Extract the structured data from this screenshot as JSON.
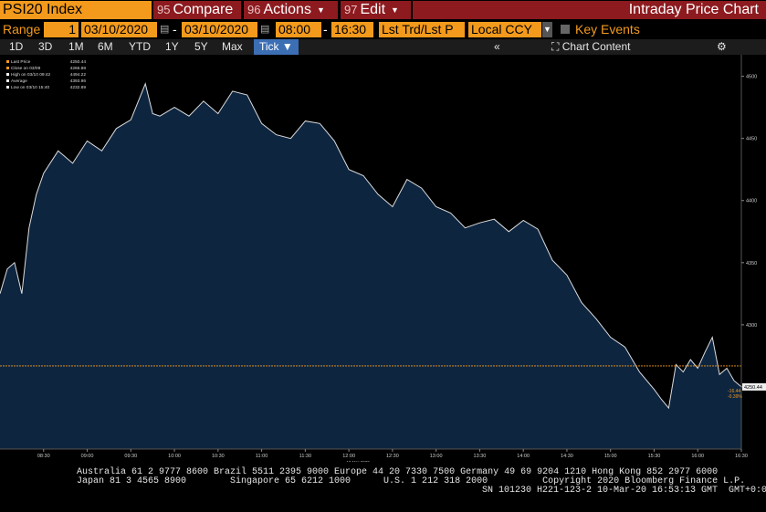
{
  "toolbar": {
    "ticker": "PSI20 Index",
    "compare": {
      "num": "95",
      "label": "Compare"
    },
    "actions": {
      "num": "96",
      "label": "Actions"
    },
    "edit": {
      "num": "97",
      "label": "Edit"
    },
    "title": "Intraday Price Chart"
  },
  "range_bar": {
    "range_label": "Range",
    "range_value": "1",
    "start_date": "03/10/2020",
    "end_date": "03/10/2020",
    "start_time": "08:00",
    "end_time": "16:30",
    "price_field": "Lst Trd/Lst P",
    "currency": "Local CCY",
    "key_events": "Key Events"
  },
  "period_tabs": [
    "1D",
    "3D",
    "1M",
    "6M",
    "YTD",
    "1Y",
    "5Y",
    "Max"
  ],
  "tick_label": "Tick",
  "chart_content": "Chart Content",
  "legend": [
    {
      "label": "Last Price",
      "value": "4250.44",
      "color": "#f39a1c"
    },
    {
      "label": "Close on 03/09",
      "value": "4266.88",
      "color": "#f39a1c"
    },
    {
      "label": "High on 03/10 09:42",
      "value": "4494.22",
      "color": "#ffffff"
    },
    {
      "label": "Average",
      "value": "4393.96",
      "color": "#ffffff"
    },
    {
      "label": "Low on 03/10 15:40",
      "value": "4232.89",
      "color": "#ffffff"
    }
  ],
  "last_price_tag": "4250.44",
  "change_tag": "-16.44",
  "change_pct_tag": "-0.39%",
  "date_label": "10 Mar 2020",
  "colors": {
    "accent": "#f39a1c",
    "menu": "#8c1a1f",
    "area": "#0e2540",
    "line": "#dcdcdc"
  },
  "chart_data": {
    "type": "area",
    "x": [
      "08:00",
      "08:05",
      "08:10",
      "08:15",
      "08:20",
      "08:25",
      "08:30",
      "08:40",
      "08:50",
      "09:00",
      "09:10",
      "09:20",
      "09:30",
      "09:40",
      "09:45",
      "09:50",
      "10:00",
      "10:10",
      "10:20",
      "10:30",
      "10:40",
      "10:50",
      "11:00",
      "11:10",
      "11:20",
      "11:30",
      "11:40",
      "11:50",
      "12:00",
      "12:10",
      "12:20",
      "12:30",
      "12:40",
      "12:50",
      "13:00",
      "13:10",
      "13:20",
      "13:30",
      "13:40",
      "13:50",
      "14:00",
      "14:10",
      "14:20",
      "14:30",
      "14:40",
      "14:50",
      "15:00",
      "15:10",
      "15:20",
      "15:30",
      "15:35",
      "15:40",
      "15:45",
      "15:50",
      "15:55",
      "16:00",
      "16:05",
      "16:10",
      "16:15",
      "16:20",
      "16:25",
      "16:30"
    ],
    "values": [
      4325,
      4345,
      4350,
      4325,
      4378,
      4405,
      4422,
      4440,
      4430,
      4448,
      4440,
      4458,
      4465,
      4494,
      4470,
      4468,
      4475,
      4468,
      4480,
      4470,
      4488,
      4485,
      4462,
      4453,
      4450,
      4464,
      4462,
      4448,
      4425,
      4420,
      4405,
      4395,
      4417,
      4410,
      4395,
      4390,
      4378,
      4382,
      4385,
      4375,
      4384,
      4377,
      4352,
      4340,
      4318,
      4305,
      4290,
      4282,
      4262,
      4248,
      4240,
      4233,
      4268,
      4262,
      4272,
      4265,
      4278,
      4290,
      4260,
      4265,
      4255,
      4250
    ],
    "ylim": [
      4200,
      4510
    ],
    "y_ticks": [
      4250,
      4300,
      4350,
      4400,
      4450,
      4500
    ],
    "x_ticks": [
      "08:30",
      "09:00",
      "09:30",
      "10:00",
      "10:30",
      "11:00",
      "11:30",
      "12:00",
      "12:30",
      "13:00",
      "13:30",
      "14:00",
      "14:30",
      "15:00",
      "15:30",
      "16:00",
      "16:30"
    ],
    "reference_line": 4266.88
  },
  "footer": {
    "line1": "Australia 61 2 9777 8600 Brazil 5511 2395 9000 Europe 44 20 7330 7500 Germany 49 69 9204 1210 Hong Kong 852 2977 6000",
    "line2": "Japan 81 3 4565 8900        Singapore 65 6212 1000      U.S. 1 212 318 2000          Copyright 2020 Bloomberg Finance L.P.",
    "line3": "SN 101230 H221-123-2 10-Mar-20 16:53:13 GMT  GMT+0:00"
  }
}
